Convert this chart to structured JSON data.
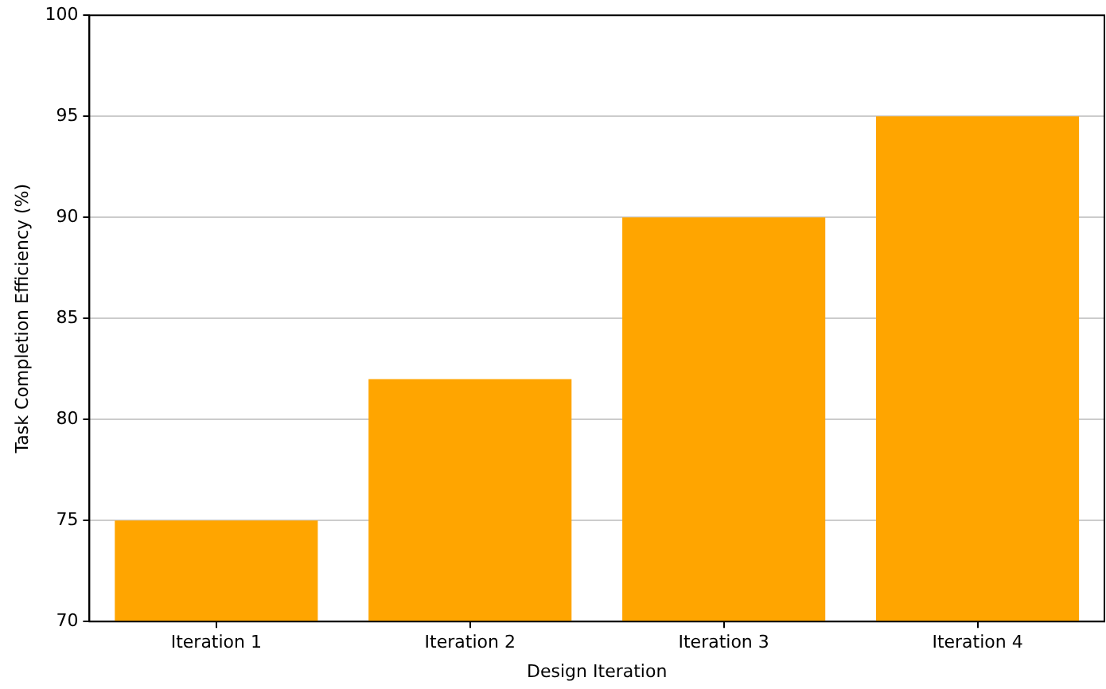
{
  "chart_data": {
    "type": "bar",
    "xlabel": "Design Iteration",
    "ylabel": "Task Completion Efficiency (%)",
    "categories": [
      "Iteration 1",
      "Iteration 2",
      "Iteration 3",
      "Iteration 4"
    ],
    "values": [
      75,
      82,
      90,
      95
    ],
    "color": "#ffa500",
    "ylim": [
      70,
      100
    ],
    "yticks": [
      70,
      75,
      80,
      85,
      90,
      95,
      100
    ],
    "grid": "y"
  }
}
